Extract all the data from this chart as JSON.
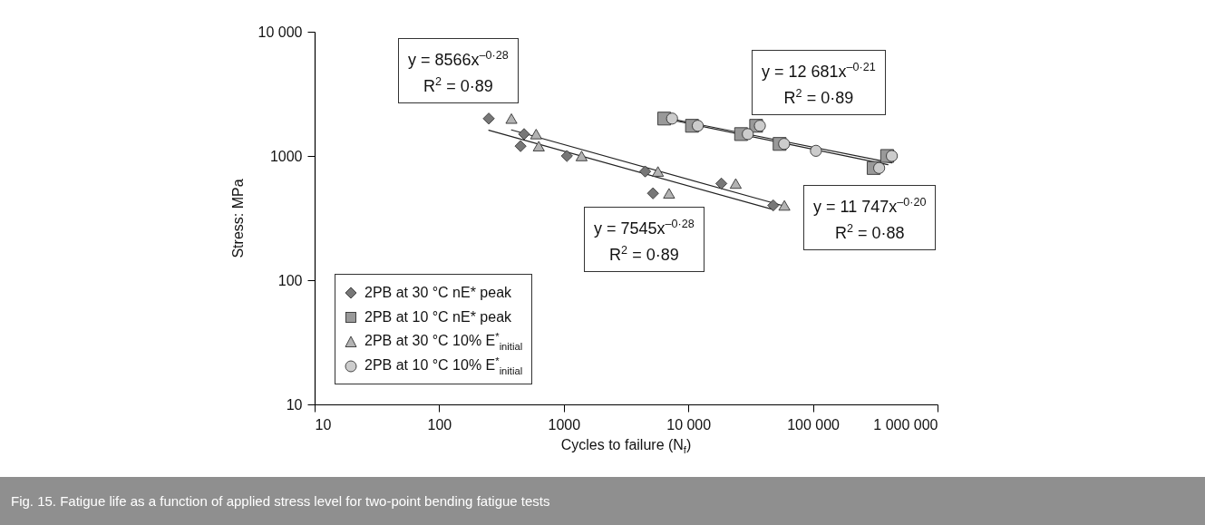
{
  "chart_data": {
    "type": "scatter",
    "xlabel": "Cycles to failure (N$_{f}$)",
    "ylabel": "Stress: MPa",
    "log": "xy",
    "grid": false,
    "legend": "bottom left",
    "xlim": [
      10,
      1000000
    ],
    "ylim": [
      10,
      10000
    ],
    "xticks": [
      10,
      100,
      1000,
      {
        "value": 10000,
        "label": "10 000"
      },
      {
        "value": 100000,
        "label": "100 000"
      },
      {
        "value": 1000000,
        "label": "1 000 000"
      }
    ],
    "yticks": [
      10,
      100,
      1000,
      {
        "value": 10000,
        "label": "10 000"
      }
    ],
    "series": [
      {
        "name": "2PB at 30 °C nE* peak",
        "marker": "diamond",
        "color": "#777777",
        "x": [
          250,
          480,
          450,
          1060,
          4500,
          5200,
          18400,
          48000
        ],
        "values": [
          2000,
          1500,
          1200,
          1000,
          750,
          500,
          600,
          400
        ]
      },
      {
        "name": "2PB at 10 °C nE* peak",
        "marker": "square",
        "color": "#999999",
        "x": [
          6400,
          10700,
          26500,
          35000,
          54000,
          307000,
          394000
        ],
        "values": [
          2000,
          1750,
          1500,
          1750,
          1250,
          800,
          1000
        ]
      },
      {
        "name": "2PB at 30 °C 10% E$^{*}$$_{initial}$",
        "marker": "triangle",
        "color": "#b3b3b3",
        "x": [
          380,
          600,
          630,
          1390,
          5700,
          7000,
          24000,
          59000
        ],
        "values": [
          2000,
          1500,
          1200,
          1000,
          750,
          500,
          600,
          400
        ]
      },
      {
        "name": "2PB at 10 °C 10% E$^{*}$$_{initial}$",
        "marker": "circle",
        "color": "#cccccc",
        "x": [
          7400,
          11900,
          30000,
          37500,
          58700,
          105700,
          340000,
          430000
        ],
        "values": [
          2000,
          1750,
          1500,
          1750,
          1250,
          1100,
          800,
          1000
        ]
      },
      {
        "type": "line",
        "color": "#222222",
        "x": [
          250,
          48000
        ],
        "values": [
          1610,
          370
        ]
      },
      {
        "type": "line",
        "color": "#222222",
        "x": [
          380,
          59000
        ],
        "values": [
          1620,
          395
        ]
      },
      {
        "type": "line",
        "color": "#222222",
        "x": [
          6400,
          400000
        ],
        "values": [
          2000,
          850
        ]
      },
      {
        "type": "line",
        "color": "#222222",
        "x": [
          7400,
          430000
        ],
        "values": [
          1980,
          880
        ]
      }
    ],
    "annotations": [
      "y = 8566x$^{–0·28}$\nR$^{2}$ = 0·89",
      "y = 12 681x$^{–0·21}$\nR$^{2}$ = 0·89",
      "y = 11 747x$^{–0·20}$\nR$^{2}$ = 0·88",
      "y = 7545x$^{–0·28}$\nR$^{2}$ = 0·89",
      "Fig. 15. Fatigue life as a function of applied stress level for two-point bending fatigue tests"
    ]
  }
}
